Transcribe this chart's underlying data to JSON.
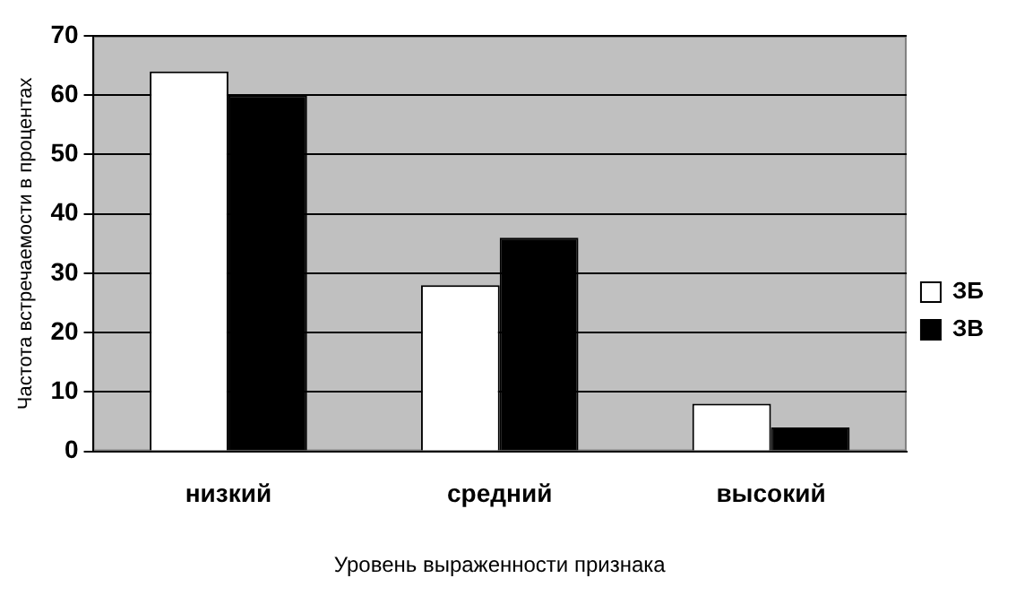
{
  "chart_data": {
    "type": "bar",
    "xlabel": "Уровень выраженности признака",
    "ylabel": "Частота встречаемости в процентах",
    "categories": [
      "низкий",
      "средний",
      "высокий"
    ],
    "series": [
      {
        "name": "ЗБ",
        "color": "#ffffff",
        "values": [
          64,
          28,
          8
        ]
      },
      {
        "name": "ЗВ",
        "color": "#000000",
        "values": [
          60,
          36,
          4
        ]
      }
    ],
    "ylim": [
      0,
      70
    ],
    "yticks": [
      0,
      10,
      20,
      30,
      40,
      50,
      60,
      70
    ],
    "grid": "y",
    "legend": "right"
  }
}
